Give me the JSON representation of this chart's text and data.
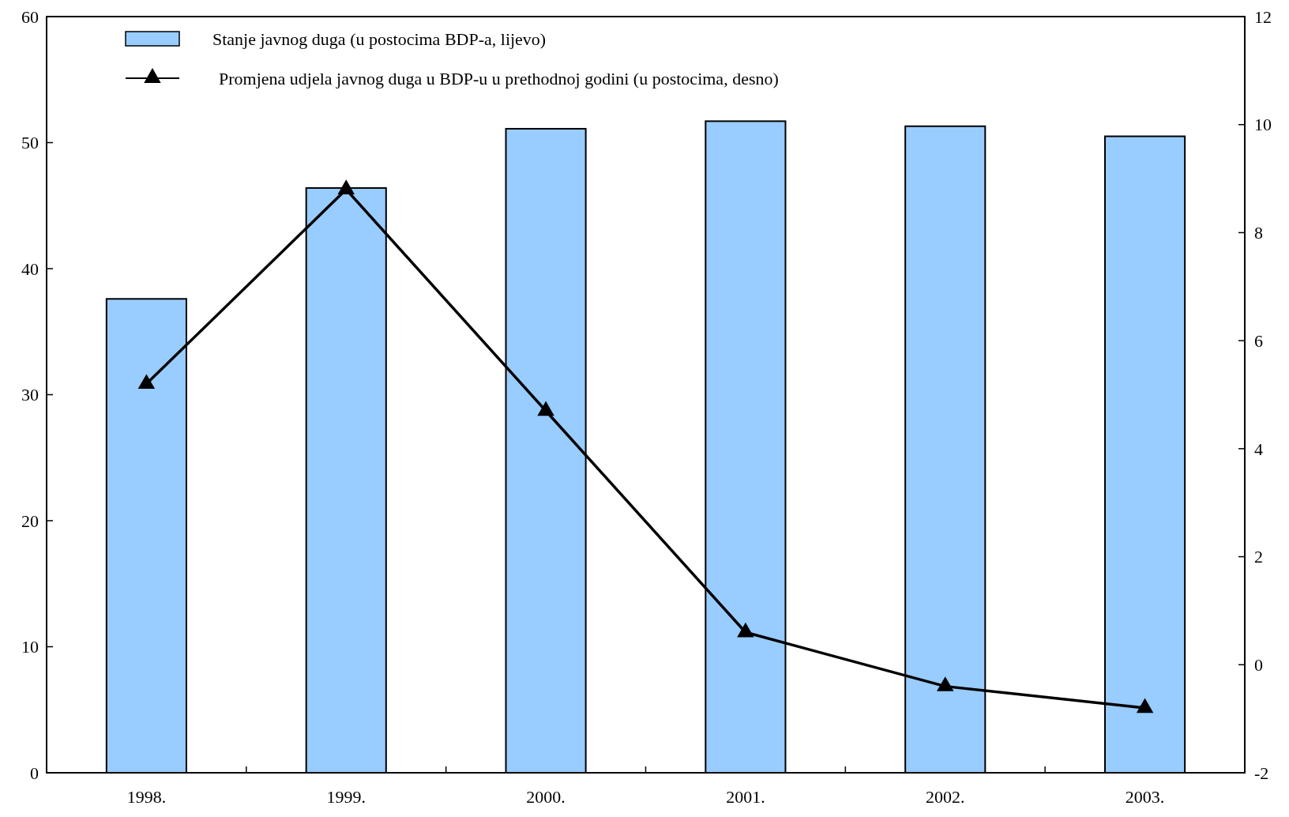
{
  "chart_data": {
    "type": "bar",
    "categories": [
      "1998.",
      "1999.",
      "2000.",
      "2001.",
      "2002.",
      "2003."
    ],
    "series": [
      {
        "name": "Stanje javnog duga (u postocima BDP-a, lijevo)",
        "color": "#99ccff",
        "values": [
          37.6,
          46.4,
          51.1,
          51.7,
          51.3,
          50.5
        ]
      },
      {
        "name": "Promjena udjela javnog duga u BDP-u u prethodnoj godini (u postocima, desno)",
        "type": "line",
        "axis": "y2",
        "color": "#000000",
        "marker": "triangle",
        "values": [
          5.2,
          8.8,
          4.7,
          0.6,
          -0.4,
          -0.8
        ]
      }
    ],
    "ylim": [
      0,
      60
    ],
    "yticks": [
      0,
      10,
      20,
      30,
      40,
      50,
      60
    ],
    "y2lim": [
      -2,
      12
    ],
    "y2ticks": [
      -2,
      0,
      2,
      4,
      6,
      8,
      10,
      12
    ],
    "legend": "top left",
    "grid": false
  }
}
